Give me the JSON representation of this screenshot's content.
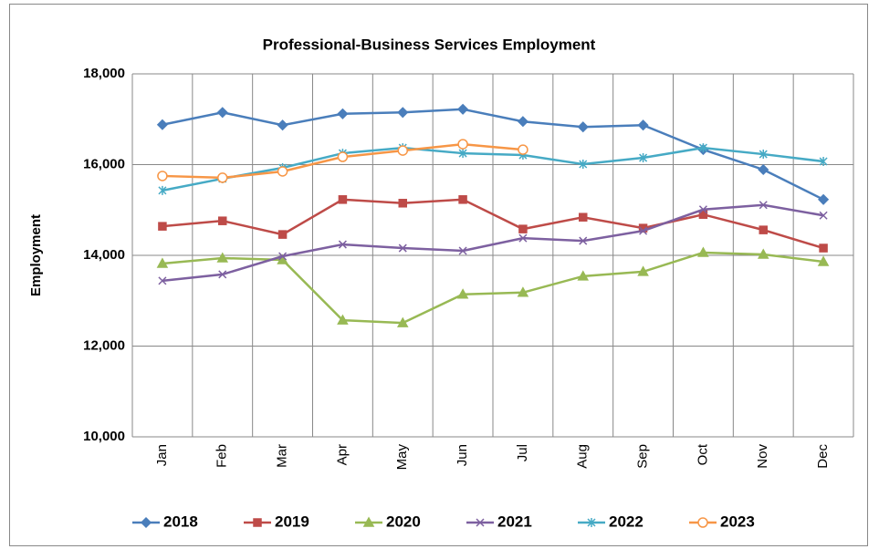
{
  "chart_data": {
    "type": "line",
    "title": "Professional-Business Services Employment",
    "y_label": "Employment",
    "categories": [
      "Jan",
      "Feb",
      "Mar",
      "Apr",
      "May",
      "Jun",
      "Jul",
      "Aug",
      "Sep",
      "Oct",
      "Nov",
      "Dec"
    ],
    "series": [
      {
        "name": "2018",
        "color": "#4a7ebb",
        "marker": "diamond",
        "values": [
          16880,
          17150,
          16870,
          17120,
          17150,
          17220,
          16950,
          16830,
          16870,
          16330,
          15890,
          15230
        ]
      },
      {
        "name": "2019",
        "color": "#be4b48",
        "marker": "square",
        "values": [
          14640,
          14760,
          14460,
          15230,
          15150,
          15230,
          14580,
          14840,
          14600,
          14900,
          14560,
          14160
        ]
      },
      {
        "name": "2020",
        "color": "#98b954",
        "marker": "triangle",
        "values": [
          13820,
          13940,
          13900,
          12570,
          12510,
          13140,
          13180,
          13540,
          13640,
          14060,
          14020,
          13860
        ]
      },
      {
        "name": "2021",
        "color": "#7d60a0",
        "marker": "x",
        "values": [
          13440,
          13580,
          13980,
          14240,
          14160,
          14100,
          14380,
          14320,
          14540,
          15010,
          15110,
          14880
        ]
      },
      {
        "name": "2022",
        "color": "#46aac5",
        "marker": "star",
        "values": [
          15430,
          15690,
          15930,
          16250,
          16370,
          16250,
          16210,
          16010,
          16150,
          16370,
          16230,
          16070
        ]
      },
      {
        "name": "2023",
        "color": "#f79646",
        "marker": "circle",
        "values": [
          15750,
          15710,
          15850,
          16170,
          16310,
          16450,
          16330,
          null,
          null,
          null,
          null,
          null
        ]
      }
    ],
    "ylim": [
      10000,
      18000
    ],
    "yticks": [
      {
        "value": 10000,
        "label": "10,000"
      },
      {
        "value": 12000,
        "label": "12,000"
      },
      {
        "value": 14000,
        "label": "14,000"
      },
      {
        "value": 16000,
        "label": "16,000"
      },
      {
        "value": 18000,
        "label": "18,000"
      }
    ],
    "grid": true,
    "legend": "bottom"
  }
}
